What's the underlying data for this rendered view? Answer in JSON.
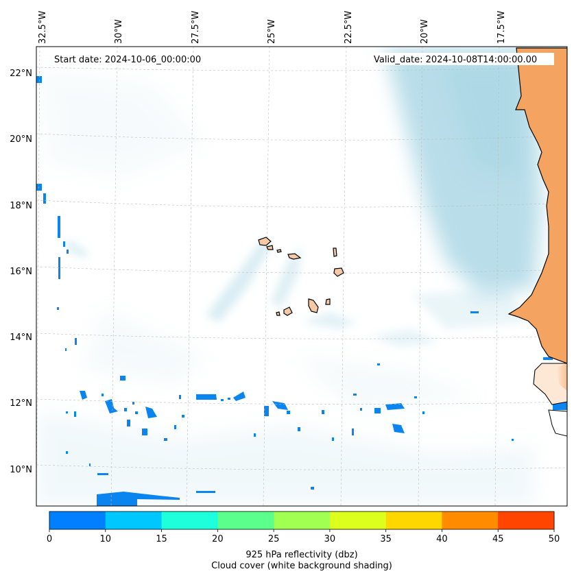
{
  "annotations": {
    "start_date": "Start date: 2024-10-06_00:00:00",
    "valid_date": "Valid_date: 2024-10-08T14:00:00.00"
  },
  "colorbar": {
    "label": "925 hPa reflectivity (dbz)",
    "sublabel": "Cloud cover (white background shading)"
  },
  "chart_data": {
    "type": "heatmap",
    "variable": "925 hPa reflectivity (dbz)",
    "background_shading": "Cloud cover (white background shading)",
    "longitude_labels": [
      "32.5°W",
      "30°W",
      "27.5°W",
      "25°W",
      "22.5°W",
      "20°W",
      "17.5°W"
    ],
    "latitude_labels": [
      "22°N",
      "20°N",
      "18°N",
      "16°N",
      "14°N",
      "12°N",
      "10°N"
    ],
    "lon_range": [
      -32.6,
      -15.2
    ],
    "lat_range": [
      8.9,
      22.8
    ],
    "colorbar_levels": [
      0,
      5,
      10,
      15,
      20,
      25,
      30,
      35,
      40,
      45,
      50
    ],
    "colorbar_ticks": [
      "0",
      "10",
      "15",
      "20",
      "25",
      "30",
      "35",
      "40",
      "45",
      "50"
    ],
    "colorbar_colors": [
      "#0080ff",
      "#00c8ff",
      "#1effdc",
      "#5aff8c",
      "#a0ff50",
      "#dcff1e",
      "#ffd700",
      "#ff8c00",
      "#ff4500"
    ],
    "land_color": "#f4a460",
    "island_color": "#f5c9a5",
    "cloud_color": "#add8e6"
  }
}
